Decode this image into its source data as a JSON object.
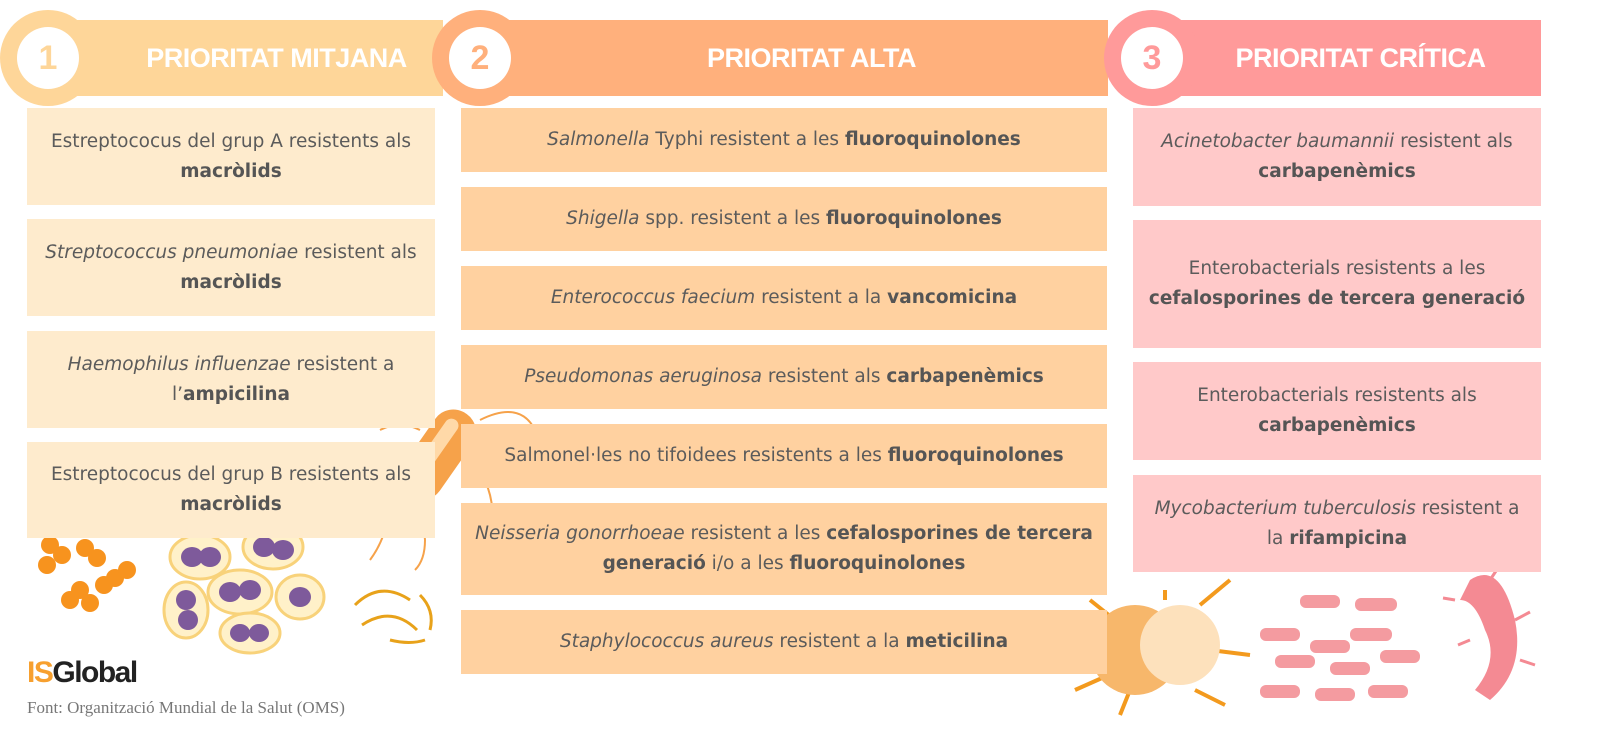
{
  "colors": {
    "medium_header": "#FED699",
    "medium_card": "#FEEBCD",
    "high_header": "#FFB07C",
    "high_card": "#FFD1A0",
    "critical_header": "#FF9A9A",
    "critical_card": "#FFC9C9",
    "text": "#5b5b5b"
  },
  "columns": [
    {
      "number": "1",
      "title": "PRIORITAT MITJANA",
      "cards": [
        [
          {
            "t": "Estreptococus del grup A resistents als ",
            "s": ""
          },
          {
            "t": "macròlids",
            "s": "b"
          }
        ],
        [
          {
            "t": "Streptococcus pneumoniae",
            "s": "i"
          },
          {
            "t": " resistent als ",
            "s": ""
          },
          {
            "t": "macròlids",
            "s": "b"
          }
        ],
        [
          {
            "t": "Haemophilus influenzae",
            "s": "i"
          },
          {
            "t": " resistent a l’",
            "s": ""
          },
          {
            "t": "ampicilina",
            "s": "b"
          }
        ],
        [
          {
            "t": "Estreptococus del grup B resistents als ",
            "s": ""
          },
          {
            "t": "macròlids",
            "s": "b"
          }
        ]
      ]
    },
    {
      "number": "2",
      "title": "PRIORITAT ALTA",
      "cards": [
        [
          {
            "t": "Salmonella",
            "s": "i"
          },
          {
            "t": " Typhi resistent a les ",
            "s": ""
          },
          {
            "t": "fluoroquinolones",
            "s": "b"
          }
        ],
        [
          {
            "t": "Shigella",
            "s": "i"
          },
          {
            "t": " spp. resistent a les ",
            "s": ""
          },
          {
            "t": "fluoroquinolones",
            "s": "b"
          }
        ],
        [
          {
            "t": "Enterococcus faecium",
            "s": "i"
          },
          {
            "t": " resistent a la ",
            "s": ""
          },
          {
            "t": "vancomicina",
            "s": "b"
          }
        ],
        [
          {
            "t": "Pseudomonas aeruginosa",
            "s": "i"
          },
          {
            "t": " resistent als ",
            "s": ""
          },
          {
            "t": "carbapenèmics",
            "s": "b"
          }
        ],
        [
          {
            "t": "Salmonel·les no tifoidees resistents a les ",
            "s": ""
          },
          {
            "t": "fluoroquinolones",
            "s": "b"
          }
        ],
        [
          {
            "t": "Neisseria gonorrhoeae",
            "s": "i"
          },
          {
            "t": " resistent a les ",
            "s": ""
          },
          {
            "t": "cefalosporines de tercera generació",
            "s": "b"
          },
          {
            "t": " i/o a les ",
            "s": ""
          },
          {
            "t": "fluoroquinolones",
            "s": "b"
          }
        ],
        [
          {
            "t": "Staphylococcus aureus",
            "s": "i"
          },
          {
            "t": " resistent a la ",
            "s": ""
          },
          {
            "t": "meticilina",
            "s": "b"
          }
        ]
      ]
    },
    {
      "number": "3",
      "title": "PRIORITAT CRÍTICA",
      "cards": [
        [
          {
            "t": "Acinetobacter baumannii",
            "s": "i"
          },
          {
            "t": " resistent als ",
            "s": ""
          },
          {
            "t": "carbapenèmics",
            "s": "b"
          }
        ],
        [
          {
            "t": "Enterobacterials resistents a les ",
            "s": ""
          },
          {
            "t": "cefalosporines de tercera generació",
            "s": "b"
          }
        ],
        [
          {
            "t": "Enterobacterials resistents als ",
            "s": ""
          },
          {
            "t": "carbapenèmics",
            "s": "b"
          }
        ],
        [
          {
            "t": "Mycobacterium tuberculosis",
            "s": "i"
          },
          {
            "t": " resistent a la ",
            "s": ""
          },
          {
            "t": "rifampicina",
            "s": "b"
          }
        ]
      ]
    }
  ],
  "logo": {
    "part1": "IS",
    "part2": "Global",
    "part1_color": "#F7A02F",
    "part2_color": "#222222"
  },
  "source": "Font: Organització Mundial de la Salut (OMS)"
}
